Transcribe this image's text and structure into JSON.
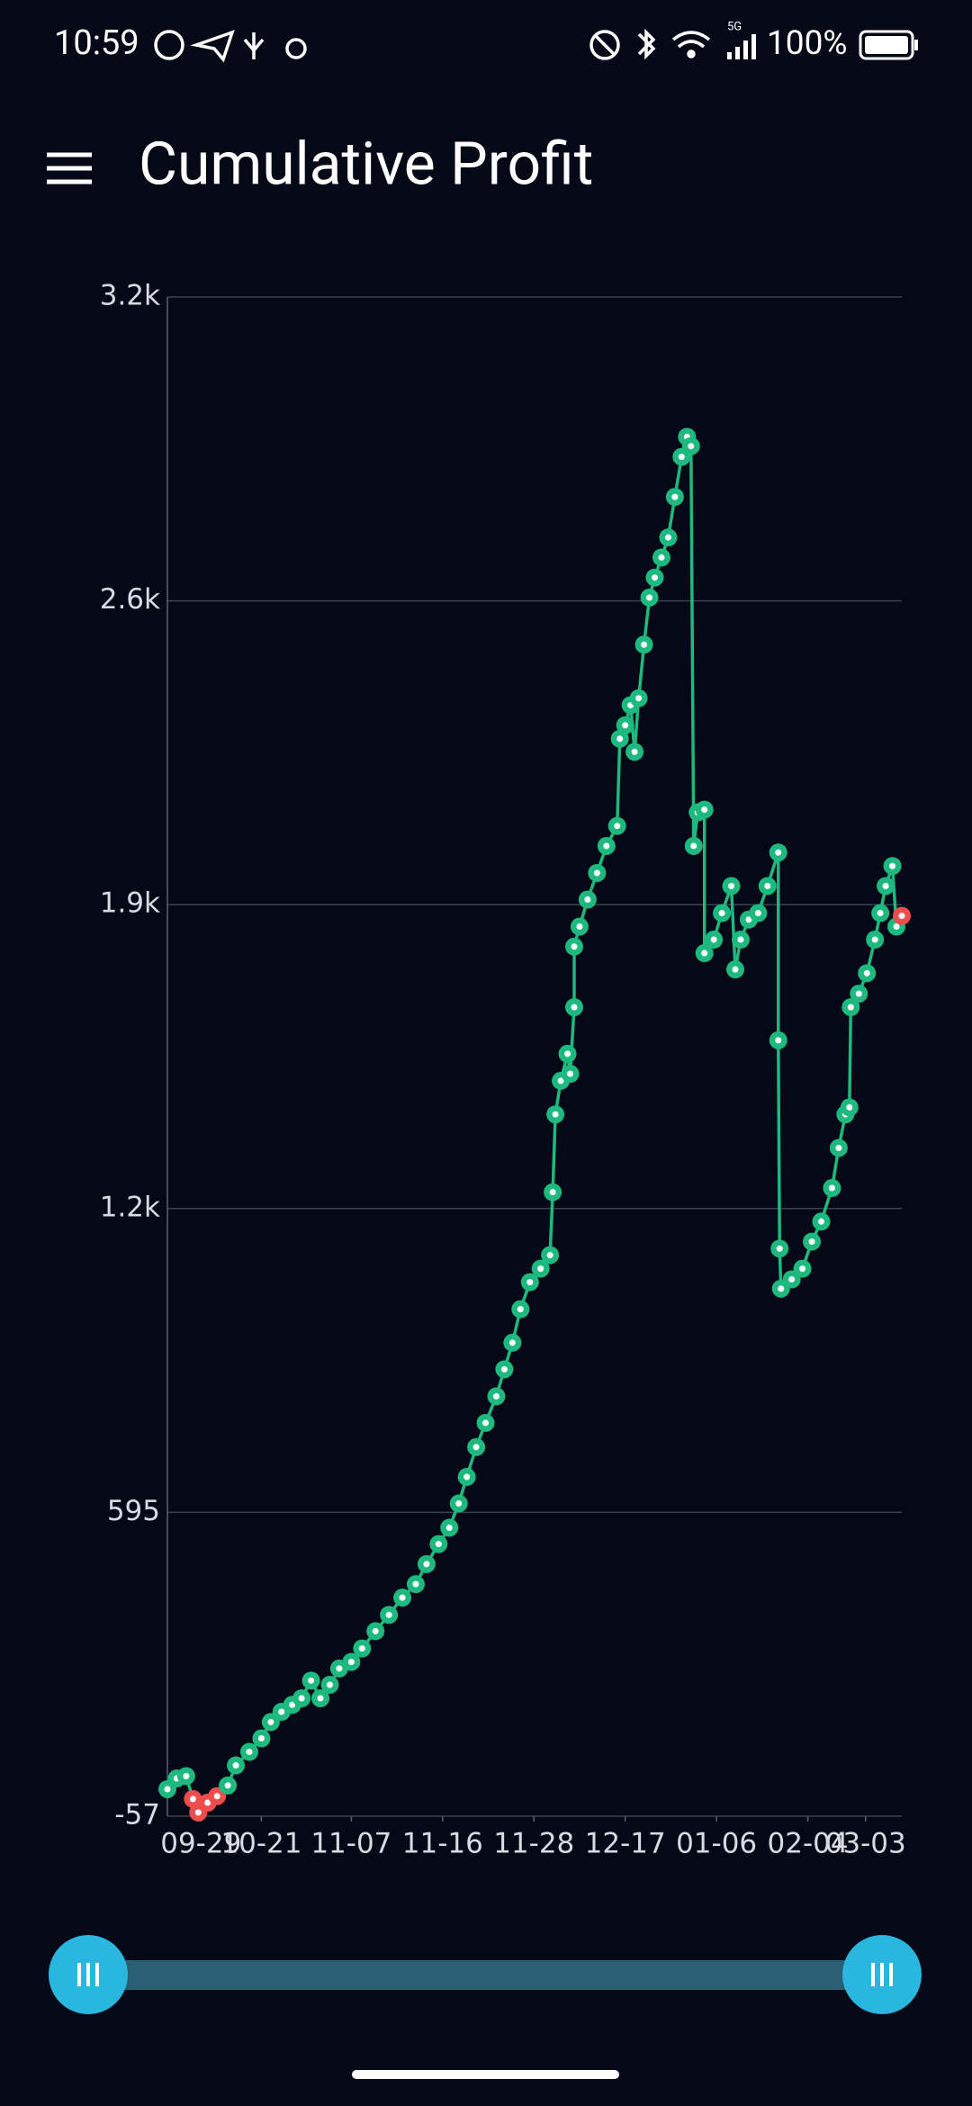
{
  "status": {
    "time": "10:59",
    "network": "5G",
    "battery": "100%"
  },
  "header": {
    "title": "Cumulative Profit"
  },
  "chart_data": {
    "type": "line",
    "color": "#1db97f",
    "grid": true,
    "xlim": [
      1,
      548
    ],
    "ylim": [
      -57,
      3203
    ],
    "yticks": [
      -57,
      595,
      {
        "value": 1247,
        "label": "1.2k"
      },
      {
        "value": 1899,
        "label": "1.9k"
      },
      {
        "value": 2551,
        "label": "2.6k"
      },
      {
        "value": 3203,
        "label": "3.2k"
      }
    ],
    "xticks": [
      {
        "value": 26,
        "label": "09-29"
      },
      {
        "value": 71,
        "label": "10-21"
      },
      {
        "value": 138,
        "label": "11-07"
      },
      {
        "value": 206,
        "label": "11-16"
      },
      {
        "value": 274,
        "label": "11-28"
      },
      {
        "value": 342,
        "label": "12-17"
      },
      {
        "value": 410,
        "label": "01-06"
      },
      {
        "value": 478,
        "label": "02-04"
      },
      {
        "value": 521,
        "label": "03-03"
      }
    ],
    "x": [
      1,
      8,
      15,
      20,
      24,
      31,
      38,
      46,
      52,
      62,
      71,
      78,
      86,
      94,
      101,
      108,
      115,
      122,
      129,
      138,
      146,
      156,
      166,
      176,
      186,
      194,
      203,
      211,
      218,
      224,
      231,
      238,
      246,
      252,
      258,
      264,
      271,
      279,
      286,
      288,
      290,
      294,
      299,
      301,
      304,
      304,
      308,
      314,
      321,
      328,
      336,
      338,
      342,
      346,
      349,
      352,
      356,
      360,
      364,
      369,
      374,
      379,
      384,
      388,
      391,
      393,
      396,
      401,
      401,
      408,
      414,
      421,
      424,
      428,
      434,
      441,
      448,
      456,
      456,
      457,
      458,
      466,
      474,
      481,
      488,
      496,
      501,
      506,
      509,
      510,
      516,
      522,
      528,
      532,
      536,
      541,
      544,
      548
    ],
    "values": [
      1,
      24,
      29,
      -20,
      -49,
      -28,
      -14,
      9,
      52,
      81,
      110,
      145,
      167,
      182,
      196,
      234,
      196,
      225,
      260,
      274,
      303,
      340,
      375,
      412,
      441,
      484,
      527,
      562,
      614,
      671,
      735,
      787,
      844,
      902,
      959,
      1031,
      1089,
      1118,
      1147,
      1282,
      1449,
      1521,
      1579,
      1536,
      1679,
      1809,
      1852,
      1910,
      1967,
      2025,
      2068,
      2255,
      2284,
      2327,
      2227,
      2342,
      2457,
      2558,
      2601,
      2644,
      2687,
      2774,
      2860,
      2903,
      2883,
      2025,
      2097,
      2103,
      1795,
      1824,
      1881,
      1939,
      1760,
      1824,
      1867,
      1881,
      1939,
      2011,
      1608,
      1161,
      1075,
      1095,
      1118,
      1176,
      1219,
      1291,
      1377,
      1449,
      1464,
      1679,
      1708,
      1752,
      1824,
      1881,
      1939,
      1982,
      1852,
      1875
    ],
    "marker_colors": [
      "#1db97f",
      "#1db97f",
      "#1db97f",
      "#ef4d4d",
      "#ef4d4d",
      "#ef4d4d",
      "#ef4d4d",
      "#1db97f",
      "#1db97f",
      "#1db97f",
      "#1db97f",
      "#1db97f",
      "#1db97f",
      "#1db97f",
      "#1db97f",
      "#1db97f",
      "#1db97f",
      "#1db97f",
      "#1db97f",
      "#1db97f",
      "#1db97f",
      "#1db97f",
      "#1db97f",
      "#1db97f",
      "#1db97f",
      "#1db97f",
      "#1db97f",
      "#1db97f",
      "#1db97f",
      "#1db97f",
      "#1db97f",
      "#1db97f",
      "#1db97f",
      "#1db97f",
      "#1db97f",
      "#1db97f",
      "#1db97f",
      "#1db97f",
      "#1db97f",
      "#1db97f",
      "#1db97f",
      "#1db97f",
      "#1db97f",
      "#1db97f",
      "#1db97f",
      "#1db97f",
      "#1db97f",
      "#1db97f",
      "#1db97f",
      "#1db97f",
      "#1db97f",
      "#1db97f",
      "#1db97f",
      "#1db97f",
      "#1db97f",
      "#1db97f",
      "#1db97f",
      "#1db97f",
      "#1db97f",
      "#1db97f",
      "#1db97f",
      "#1db97f",
      "#1db97f",
      "#1db97f",
      "#1db97f",
      "#1db97f",
      "#1db97f",
      "#1db97f",
      "#1db97f",
      "#1db97f",
      "#1db97f",
      "#1db97f",
      "#1db97f",
      "#1db97f",
      "#1db97f",
      "#1db97f",
      "#1db97f",
      "#1db97f",
      "#1db97f",
      "#1db97f",
      "#1db97f",
      "#1db97f",
      "#1db97f",
      "#1db97f",
      "#1db97f",
      "#1db97f",
      "#1db97f",
      "#1db97f",
      "#1db97f",
      "#1db97f",
      "#1db97f",
      "#1db97f",
      "#1db97f",
      "#1db97f",
      "#1db97f",
      "#1db97f",
      "#1db97f",
      "#ef4d4d"
    ]
  }
}
